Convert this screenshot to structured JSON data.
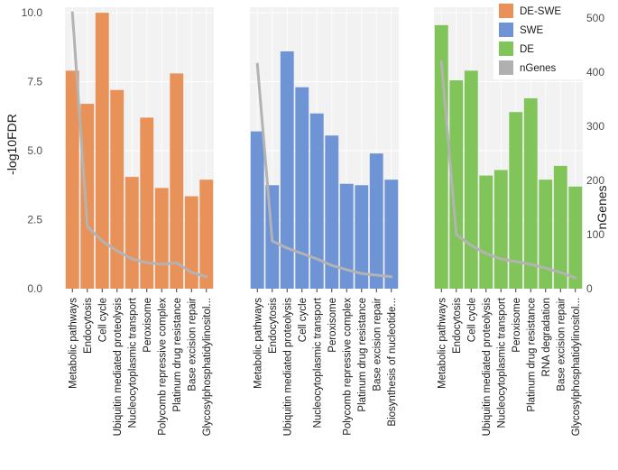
{
  "chart_data": {
    "type": "bar",
    "ylabel_left": "-log10FDR",
    "ylabel_right": "nGenes",
    "ylim_left": [
      0,
      10.2
    ],
    "yticks_left": [
      "0.0",
      "2.5",
      "5.0",
      "7.5",
      "10.0"
    ],
    "ylim_right": [
      0,
      520
    ],
    "yticks_right": [
      "0",
      "100",
      "200",
      "300",
      "400",
      "500"
    ],
    "legend": [
      {
        "label": "DE-SWE",
        "color": "#e8925a"
      },
      {
        "label": "SWE",
        "color": "#6f94d6"
      },
      {
        "label": "DE",
        "color": "#80c45a"
      },
      {
        "label": "nGenes",
        "color": "#b0b0b0"
      }
    ],
    "panels": [
      {
        "name": "DE-SWE",
        "color": "#e8925a",
        "categories": [
          "Metabolic pathways",
          "Endocytosis",
          "Cell cycle",
          "Ubiquitin mediated proteolysis",
          "Nucleocytoplasmic transport",
          "Peroxisome",
          "Polycomb repressive complex",
          "Platinum drug resistance",
          "Base excision repair",
          "Glycosylphosphatidylinositol..."
        ],
        "values": [
          7.9,
          6.7,
          10.0,
          7.2,
          4.05,
          6.2,
          3.65,
          7.8,
          3.35,
          3.95
        ],
        "ngenes": [
          510,
          115,
          88,
          70,
          55,
          48,
          45,
          48,
          30,
          22
        ]
      },
      {
        "name": "SWE",
        "color": "#6f94d6",
        "categories": [
          "Metabolic pathways",
          "Endocytosis",
          "Ubiquitin mediated proteolysis",
          "Cell cycle",
          "Nucleocytoplasmic transport",
          "Peroxisome",
          "Polycomb repressive complex",
          "Platinum drug resistance",
          "Base excision repair",
          "Biosynthesis of nucleotide..."
        ],
        "values": [
          5.7,
          3.75,
          8.6,
          7.3,
          6.35,
          5.55,
          3.8,
          3.75,
          4.9,
          3.95
        ],
        "ngenes": [
          415,
          88,
          75,
          65,
          55,
          43,
          35,
          28,
          25,
          22
        ]
      },
      {
        "name": "DE",
        "color": "#80c45a",
        "categories": [
          "Metabolic pathways",
          "Endocytosis",
          "Cell cycle",
          "Ubiquitin mediated proteolysis",
          "Nucleocytoplasmic transport",
          "Peroxisome",
          "Platinum drug resistance",
          "RNA degradation",
          "Base excision repair",
          "Glycosylphosphatidylinositol..."
        ],
        "values": [
          9.55,
          7.55,
          7.9,
          4.1,
          4.3,
          6.4,
          6.9,
          3.95,
          4.45,
          3.7
        ],
        "ngenes": [
          420,
          100,
          80,
          65,
          55,
          50,
          45,
          38,
          30,
          20
        ]
      }
    ]
  }
}
